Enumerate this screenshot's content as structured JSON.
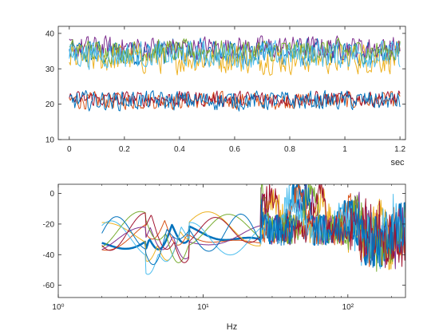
{
  "chart_data": [
    {
      "type": "line",
      "xlabel": "sec",
      "ylabel": "",
      "xlim": [
        -0.04,
        1.22
      ],
      "ylim": [
        10,
        42
      ],
      "xticks": [
        0,
        0.2,
        0.4,
        0.6,
        0.8,
        1,
        1.2
      ],
      "xtick_labels": [
        "0",
        "0.2",
        "0.4",
        "0.6",
        "0.8",
        "1",
        "1.2"
      ],
      "yticks": [
        10,
        20,
        30,
        40
      ],
      "ytick_labels": [
        "10",
        "20",
        "30",
        "40"
      ],
      "grid": false,
      "legend": "none",
      "x_range": [
        0,
        1.2
      ],
      "series": [
        {
          "color": "#0072BD",
          "mean": 34.5,
          "amplitude": 3.5
        },
        {
          "color": "#D95319",
          "mean": 21.0,
          "amplitude": 2.2
        },
        {
          "color": "#EDB120",
          "mean": 33.0,
          "amplitude": 4.0
        },
        {
          "color": "#7E2F8E",
          "mean": 36.0,
          "amplitude": 3.0
        },
        {
          "color": "#77AC30",
          "mean": 35.0,
          "amplitude": 3.0
        },
        {
          "color": "#4DBEEE",
          "mean": 34.0,
          "amplitude": 3.5
        },
        {
          "color": "#A2142F",
          "mean": 21.5,
          "amplitude": 2.0
        },
        {
          "color": "#0072BD",
          "mean": 21.0,
          "amplitude": 2.5
        }
      ]
    },
    {
      "type": "line",
      "xlabel": "Hz",
      "ylabel": "",
      "xscale": "log",
      "xlim": [
        1,
        250
      ],
      "ylim": [
        -68,
        6
      ],
      "xticks": [
        1,
        10,
        100
      ],
      "xtick_labels": [
        "10⁰",
        "10¹",
        "10²"
      ],
      "yticks": [
        -60,
        -40,
        -20,
        0
      ],
      "ytick_labels": [
        "-60",
        "-40",
        "-20",
        "0"
      ],
      "grid": false,
      "legend": "none",
      "x_range": [
        2,
        250
      ],
      "series": [
        {
          "color": "#0072BD",
          "width": 2.5
        },
        {
          "color": "#D95319",
          "width": 1
        },
        {
          "color": "#EDB120",
          "width": 1
        },
        {
          "color": "#7E2F8E",
          "width": 1
        },
        {
          "color": "#77AC30",
          "width": 1
        },
        {
          "color": "#4DBEEE",
          "width": 1
        },
        {
          "color": "#A2142F",
          "width": 1
        },
        {
          "color": "#0072BD",
          "width": 1
        }
      ]
    }
  ]
}
